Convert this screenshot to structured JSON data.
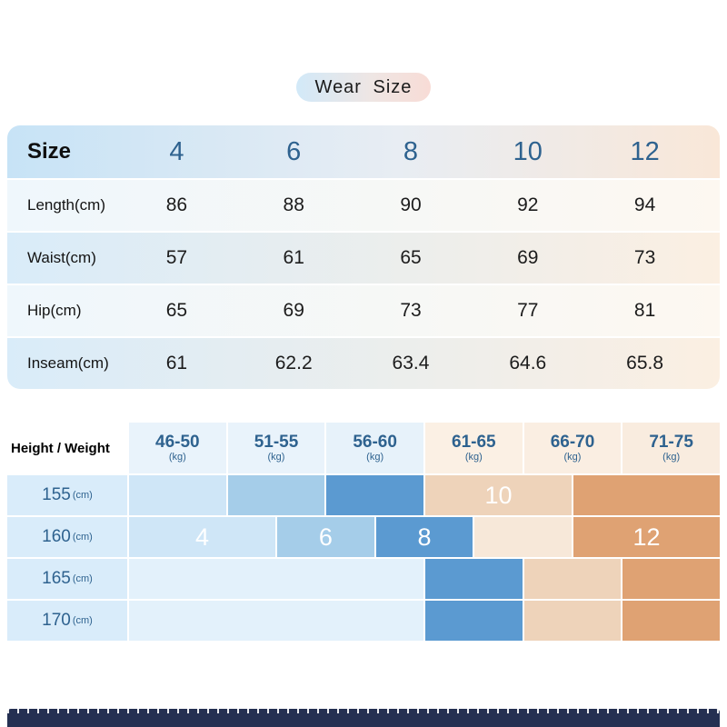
{
  "page": {
    "title": "Wear Size"
  },
  "size_table": {
    "corner": "Size",
    "sizes": [
      "4",
      "6",
      "8",
      "10",
      "12"
    ],
    "rows": [
      {
        "label": "Length(cm)",
        "values": [
          "86",
          "88",
          "90",
          "92",
          "94"
        ]
      },
      {
        "label": "Waist(cm)",
        "values": [
          "57",
          "61",
          "65",
          "69",
          "73"
        ]
      },
      {
        "label": "Hip(cm)",
        "values": [
          "65",
          "69",
          "73",
          "77",
          "81"
        ]
      },
      {
        "label": "Inseam(cm)",
        "values": [
          "61",
          "62.2",
          "63.4",
          "64.6",
          "65.8"
        ]
      }
    ]
  },
  "fit_matrix": {
    "corner": "Height / Weight",
    "weight_unit": "(kg)",
    "height_unit": "(cm)",
    "weight_ranges": [
      "46-50",
      "51-55",
      "56-60",
      "61-65",
      "66-70",
      "71-75"
    ],
    "header_colors": [
      "#e9f3fb",
      "#e9f3fb",
      "#e7f2fa",
      "#fbf0e4",
      "#faeee2",
      "#f9ecdf"
    ],
    "label_bg": "#d9ecfa",
    "palette": {
      "blue0": "#e3f1fb",
      "blue1": "#cfe6f7",
      "blue2": "#a5cde9",
      "blue3": "#5b9ad1",
      "peach1": "#f7e8d9",
      "peach2": "#eed3ba",
      "orange": "#dfa273"
    },
    "rows": [
      {
        "height": "155",
        "segments": [
          {
            "span": 2,
            "color": "blue1",
            "label": ""
          },
          {
            "span": 2,
            "color": "blue2",
            "label": ""
          },
          {
            "span": 2,
            "color": "blue3",
            "label": ""
          },
          {
            "span": 3,
            "color": "peach2",
            "label": "10"
          },
          {
            "span": 3,
            "color": "orange",
            "label": ""
          }
        ]
      },
      {
        "height": "160",
        "segments": [
          {
            "span": 3,
            "color": "blue1",
            "label": "4"
          },
          {
            "span": 2,
            "color": "blue2",
            "label": "6"
          },
          {
            "span": 2,
            "color": "blue3",
            "label": "8"
          },
          {
            "span": 2,
            "color": "peach1",
            "label": ""
          },
          {
            "span": 3,
            "color": "orange",
            "label": "12"
          }
        ]
      },
      {
        "height": "165",
        "segments": [
          {
            "span": 6,
            "color": "blue0",
            "label": ""
          },
          {
            "span": 2,
            "color": "blue3",
            "label": ""
          },
          {
            "span": 2,
            "color": "peach2",
            "label": ""
          },
          {
            "span": 2,
            "color": "orange",
            "label": ""
          }
        ]
      },
      {
        "height": "170",
        "segments": [
          {
            "span": 6,
            "color": "blue0",
            "label": ""
          },
          {
            "span": 2,
            "color": "blue3",
            "label": ""
          },
          {
            "span": 2,
            "color": "peach2",
            "label": ""
          },
          {
            "span": 2,
            "color": "orange",
            "label": ""
          }
        ]
      }
    ]
  },
  "chart_data": [
    {
      "type": "table",
      "title": "Wear Size",
      "columns": [
        "Size",
        "4",
        "6",
        "8",
        "10",
        "12"
      ],
      "rows": [
        [
          "Length(cm)",
          86,
          88,
          90,
          92,
          94
        ],
        [
          "Waist(cm)",
          57,
          61,
          65,
          69,
          73
        ],
        [
          "Hip(cm)",
          65,
          69,
          73,
          77,
          81
        ],
        [
          "Inseam(cm)",
          61,
          62.2,
          63.4,
          64.6,
          65.8
        ]
      ]
    },
    {
      "type": "heatmap",
      "title": "Height / Weight size recommendation",
      "x_labels": [
        "46-50 (kg)",
        "51-55 (kg)",
        "56-60 (kg)",
        "61-65 (kg)",
        "66-70 (kg)",
        "71-75 (kg)"
      ],
      "y_labels": [
        "155 (cm)",
        "160 (cm)",
        "165 (cm)",
        "170 (cm)"
      ],
      "annotations": [
        {
          "label": "4",
          "row": "160 (cm)",
          "weight_zone": "46 to mid 51-55 (kg)"
        },
        {
          "label": "6",
          "row": "160 (cm)",
          "weight_zone": "mid 51-55 to mid 56-60 (kg)"
        },
        {
          "label": "8",
          "row": "160 (cm)",
          "weight_zone": "mid 56-60 to mid 61-65 (kg)"
        },
        {
          "label": "10",
          "row": "155 (cm)",
          "weight_zone": "61-65 to mid 66-70 (kg)"
        },
        {
          "label": "12",
          "row": "160 (cm)",
          "weight_zone": "mid 66-70 to 71-75 (kg)"
        }
      ],
      "legend_position": "none",
      "grid": true
    }
  ]
}
